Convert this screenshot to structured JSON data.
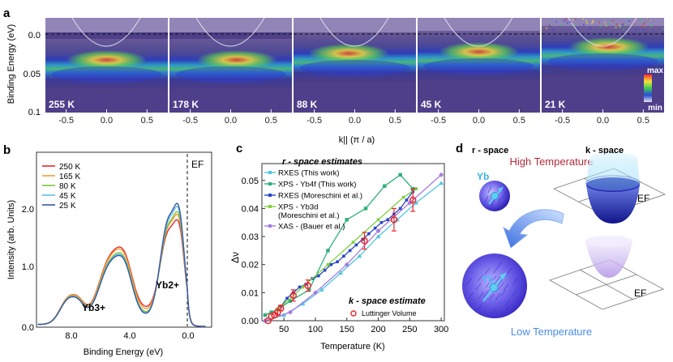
{
  "panel_a": {
    "letter": "a",
    "ylabel": "Binding Energy (eV)",
    "yticks": [
      "0.0",
      "0.05",
      "0.1"
    ],
    "xlabel": "k|| (π / a)",
    "xticks": [
      "-0.5",
      "0.0",
      "0.5"
    ],
    "temps": [
      "255 K",
      "178 K",
      "88 K",
      "45 K",
      "21 K"
    ],
    "colorbar": {
      "max": "max",
      "min": "min"
    }
  },
  "panel_b": {
    "letter": "b",
    "ylabel": "Intensity (arb. Units)",
    "xlabel": "Binding Energy (eV)",
    "xticks": [
      "8.0",
      "4.0",
      "0.0"
    ],
    "yticks": [
      "0.0",
      "1.0",
      "2.0"
    ],
    "ef_label": "EF",
    "yb3": "Yb3+",
    "yb2": "Yb2+",
    "legend": [
      {
        "label": "250 K",
        "color": "#e8262a"
      },
      {
        "label": "165 K",
        "color": "#f2a12e"
      },
      {
        "label": "80 K",
        "color": "#7fc241"
      },
      {
        "label": "45 K",
        "color": "#58c1e6"
      },
      {
        "label": "25 K",
        "color": "#3a55a6"
      }
    ]
  },
  "panel_c": {
    "letter": "c",
    "ylabel": "Δν",
    "xlabel": "Temperature (K)",
    "xticks": [
      "50",
      "100",
      "150",
      "200",
      "250",
      "300"
    ],
    "yticks": [
      "0.00",
      "0.01",
      "0.02",
      "0.03",
      "0.04",
      "0.05"
    ],
    "r_title": "r - space estimates",
    "k_title": "k - space estimate",
    "legend": [
      {
        "label": "RXES (This work)",
        "color": "#4fc6e0"
      },
      {
        "label": "XPS - Yb4f (This work)",
        "color": "#2bb074"
      },
      {
        "label": "RXES (Moreschini et al.)",
        "color": "#2846c8"
      },
      {
        "label": "XPS - Yb3d",
        "label2": "(Moreschini et al.)",
        "color": "#7dd13b"
      },
      {
        "label": "XAS - (Bauer et al.)",
        "color": "#a77be0"
      }
    ],
    "luttinger_label": "Luttinger Volume"
  },
  "chart_data": {
    "type": "scatter",
    "xlabel": "Temperature (K)",
    "ylabel": "Δν",
    "xlim": [
      15,
      305
    ],
    "ylim": [
      0,
      0.056
    ],
    "series": [
      {
        "name": "RXES (This work)",
        "color": "#4fc6e0",
        "x": [
          20,
          50,
          80,
          110,
          140,
          170,
          200,
          230,
          260,
          300
        ],
        "y": [
          0,
          0.002,
          0.006,
          0.011,
          0.017,
          0.023,
          0.03,
          0.036,
          0.042,
          0.049
        ]
      },
      {
        "name": "XPS - Yb4f (This work)",
        "color": "#2bb074",
        "x": [
          20,
          30,
          40,
          60,
          90,
          120,
          150,
          180,
          210,
          235,
          255
        ],
        "y": [
          0.002,
          0.003,
          0.004,
          0.007,
          0.011,
          0.025,
          0.036,
          0.04,
          0.048,
          0.052,
          0.047
        ]
      },
      {
        "name": "RXES (Moreschini et al.)",
        "color": "#2846c8",
        "x": [
          45,
          55,
          65,
          75,
          85,
          95,
          105,
          115,
          125,
          135,
          145,
          155,
          165,
          175,
          185,
          195,
          205,
          215,
          225,
          235,
          245,
          255,
          260
        ],
        "y": [
          0.005,
          0.008,
          0.01,
          0.012,
          0.013,
          0.015,
          0.016,
          0.018,
          0.02,
          0.021,
          0.023,
          0.025,
          0.027,
          0.029,
          0.031,
          0.033,
          0.035,
          0.036,
          0.038,
          0.04,
          0.043,
          0.046,
          0.047
        ]
      },
      {
        "name": "XPS - Yb3d (Moreschini et al.)",
        "color": "#7dd13b",
        "x": [
          40,
          80,
          120,
          160,
          200,
          240,
          260
        ],
        "y": [
          0.004,
          0.012,
          0.02,
          0.028,
          0.036,
          0.044,
          0.047
        ]
      },
      {
        "name": "XAS - (Bauer et al.)",
        "color": "#a77be0",
        "x": [
          20,
          60,
          100,
          150,
          200,
          250,
          300
        ],
        "y": [
          0,
          0.003,
          0.01,
          0.02,
          0.032,
          0.042,
          0.052
        ]
      },
      {
        "name": "Luttinger Volume",
        "color": "#e8262a",
        "x": [
          25,
          30,
          35,
          40,
          45,
          65,
          88,
          178,
          225,
          255
        ],
        "y": [
          0,
          0.0015,
          0.002,
          0.003,
          0.0045,
          0.009,
          0.0125,
          0.0285,
          0.036,
          0.043
        ],
        "err": [
          0,
          0,
          0,
          0.001,
          0.001,
          0.002,
          0.002,
          0.003,
          0.004,
          0.004
        ]
      }
    ]
  },
  "panel_d": {
    "letter": "d",
    "r_space": "r - space",
    "k_space": "k - space",
    "high_temp": "High Temperature",
    "low_temp": "Low Temperature",
    "yb": "Yb",
    "ef": "EF"
  }
}
